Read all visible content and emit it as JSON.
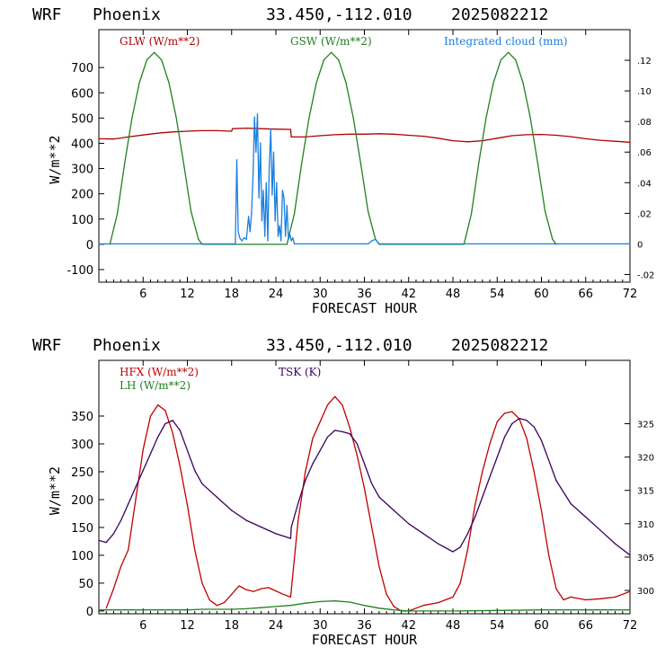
{
  "charts": [
    {
      "header": {
        "model": "WRF",
        "station": "Phoenix",
        "coords": "33.450,-112.010",
        "init": "2025082212"
      }
    },
    {
      "header": {
        "model": "WRF",
        "station": "Phoenix",
        "coords": "33.450,-112.010",
        "init": "2025082212"
      }
    }
  ],
  "chart_data": [
    {
      "type": "line",
      "xlabel": "FORECAST HOUR",
      "ylabel": "W/m**2",
      "xlim": [
        0,
        72
      ],
      "ylim": [
        -150,
        850
      ],
      "y2lim": [
        -0.025,
        0.14
      ],
      "xticks": [
        6,
        12,
        18,
        24,
        30,
        36,
        42,
        48,
        54,
        60,
        66,
        72
      ],
      "yticks": [
        -100,
        0,
        100,
        200,
        300,
        400,
        500,
        600,
        700
      ],
      "y2ticks": [
        -0.02,
        0,
        0.02,
        0.04,
        0.06,
        0.08,
        0.1,
        0.12
      ],
      "y2ticklabels": [
        "-.02",
        "0",
        ".02",
        ".04",
        ".06",
        ".08",
        ".10",
        ".12"
      ],
      "series": [
        {
          "name": "GLW (W/m**2)",
          "color": "#b00000",
          "axis": "left",
          "x": [
            0,
            2,
            4,
            6,
            8,
            10,
            12,
            14,
            16,
            18,
            18.1,
            20,
            22,
            24,
            26,
            26.1,
            28,
            30,
            32,
            34,
            36,
            38,
            40,
            42,
            44,
            46,
            48,
            50,
            52,
            54,
            56,
            58,
            60,
            62,
            64,
            66,
            68,
            70,
            72
          ],
          "values": [
            418,
            417,
            425,
            433,
            440,
            445,
            448,
            450,
            450,
            448,
            458,
            460,
            458,
            456,
            455,
            425,
            425,
            430,
            434,
            436,
            436,
            438,
            436,
            432,
            428,
            420,
            410,
            406,
            410,
            420,
            430,
            434,
            435,
            432,
            426,
            418,
            412,
            408,
            404
          ]
        },
        {
          "name": "GSW (W/m**2)",
          "color": "#208020",
          "axis": "left",
          "x": [
            1.5,
            2.5,
            3.5,
            4.5,
            5.5,
            6.5,
            7.5,
            8.5,
            9.5,
            10.5,
            11.5,
            12.5,
            13.5,
            14.0,
            25.5,
            26.5,
            27.5,
            28.5,
            29.5,
            30.5,
            31.5,
            32.5,
            33.5,
            34.5,
            35.5,
            36.5,
            37.5,
            38.0,
            49.5,
            50.5,
            51.5,
            52.5,
            53.5,
            54.5,
            55.5,
            56.5,
            57.5,
            58.5,
            59.5,
            60.5,
            61.5,
            62.0
          ],
          "values": [
            0,
            120,
            320,
            500,
            640,
            730,
            760,
            730,
            640,
            500,
            320,
            130,
            20,
            0,
            0,
            120,
            320,
            500,
            640,
            730,
            760,
            730,
            640,
            500,
            320,
            130,
            20,
            0,
            0,
            120,
            320,
            500,
            640,
            730,
            760,
            730,
            640,
            500,
            320,
            130,
            20,
            0
          ]
        },
        {
          "name": "Integrated cloud (mm)",
          "color": "#1a7fe0",
          "axis": "right",
          "x": [
            0,
            18.5,
            18.7,
            18.9,
            19.1,
            19.4,
            19.7,
            20.0,
            20.3,
            20.5,
            20.7,
            20.9,
            21.1,
            21.3,
            21.5,
            21.7,
            21.9,
            22.1,
            22.3,
            22.5,
            22.7,
            22.9,
            23.1,
            23.3,
            23.5,
            23.7,
            23.9,
            24.1,
            24.3,
            24.5,
            24.7,
            24.9,
            25.1,
            25.3,
            25.5,
            25.7,
            25.9,
            26.1,
            26.3,
            26.5,
            36.5,
            37.0,
            37.5,
            38.0,
            72
          ],
          "values": [
            0,
            0,
            0.055,
            0.008,
            0.004,
            0.002,
            0.004,
            0.003,
            0.018,
            0.008,
            0.02,
            0.045,
            0.083,
            0.06,
            0.085,
            0.03,
            0.066,
            0.015,
            0.035,
            0.005,
            0.04,
            0.002,
            0.05,
            0.075,
            0.032,
            0.06,
            0.015,
            0.04,
            0.005,
            0.012,
            0.002,
            0.035,
            0.03,
            0.005,
            0.025,
            0.003,
            0.006,
            0.002,
            0.004,
            0,
            0,
            0.002,
            0.003,
            0,
            0
          ]
        }
      ]
    },
    {
      "type": "line",
      "xlabel": "FORECAST HOUR",
      "ylabel": "W/m**2",
      "xlim": [
        0,
        72
      ],
      "ylim": [
        -5,
        450
      ],
      "y2lim": [
        296.5,
        334.5
      ],
      "xticks": [
        6,
        12,
        18,
        24,
        30,
        36,
        42,
        48,
        54,
        60,
        66,
        72
      ],
      "yticks": [
        0,
        50,
        100,
        150,
        200,
        250,
        300,
        350
      ],
      "y2ticks": [
        300,
        305,
        310,
        315,
        320,
        325
      ],
      "series": [
        {
          "name": "HFX (W/m**2)",
          "color": "#c00000",
          "axis": "left",
          "x": [
            1,
            2,
            3,
            4,
            5,
            6,
            7,
            8,
            9,
            10,
            11,
            12,
            13,
            14,
            15,
            16,
            17,
            18,
            19,
            20,
            21,
            22,
            23,
            24,
            25,
            26,
            27,
            28,
            29,
            30,
            31,
            32,
            33,
            34,
            35,
            36,
            37,
            38,
            39,
            40,
            41,
            42,
            44,
            46,
            48,
            49,
            50,
            51,
            52,
            53,
            54,
            55,
            56,
            57,
            58,
            59,
            60,
            61,
            62,
            63,
            64,
            66,
            68,
            70,
            72
          ],
          "values": [
            5,
            40,
            80,
            110,
            200,
            290,
            350,
            370,
            360,
            320,
            260,
            190,
            110,
            50,
            20,
            10,
            15,
            30,
            45,
            38,
            35,
            40,
            42,
            36,
            30,
            25,
            160,
            250,
            310,
            340,
            370,
            385,
            370,
            330,
            280,
            220,
            150,
            80,
            30,
            8,
            0,
            0,
            10,
            15,
            25,
            50,
            110,
            190,
            250,
            300,
            340,
            355,
            358,
            345,
            310,
            250,
            180,
            100,
            40,
            20,
            25,
            20,
            22,
            25,
            35
          ]
        },
        {
          "name": "LH (W/m**2)",
          "color": "#208020",
          "axis": "left",
          "x": [
            0,
            6,
            12,
            14,
            18,
            20,
            22,
            24,
            26,
            28,
            30,
            32,
            34,
            36,
            38,
            40,
            42,
            48,
            54,
            60,
            66,
            72
          ],
          "values": [
            2,
            2,
            2,
            3,
            3,
            4,
            6,
            8,
            10,
            14,
            17,
            18,
            16,
            10,
            5,
            2,
            0,
            0,
            1,
            2,
            2,
            2
          ]
        },
        {
          "name": "TSK (K)",
          "color": "#3a0060",
          "axis": "right",
          "x": [
            0,
            1,
            2,
            3,
            4,
            5,
            6,
            7,
            8,
            9,
            10,
            11,
            12,
            13,
            14,
            16,
            18,
            20,
            22,
            24,
            26,
            26.1,
            27,
            28,
            29,
            30,
            31,
            32,
            33,
            34,
            35,
            36,
            37,
            38,
            40,
            42,
            44,
            46,
            48,
            49,
            50,
            51,
            52,
            53,
            54,
            55,
            56,
            57,
            58,
            59,
            60,
            61,
            62,
            64,
            66,
            68,
            70,
            72
          ],
          "values": [
            307.5,
            307.2,
            308.5,
            310.5,
            313,
            315.5,
            318,
            320.5,
            323,
            325,
            325.5,
            324,
            321,
            318,
            316,
            314,
            312,
            310.5,
            309.5,
            308.5,
            307.8,
            309.5,
            313,
            316.5,
            319,
            321,
            323,
            324,
            323.8,
            323.5,
            322,
            319,
            316,
            314,
            312,
            310,
            308.5,
            307,
            305.8,
            306.5,
            308.5,
            311,
            314,
            317,
            320,
            323,
            325,
            325.8,
            325.5,
            324.5,
            322.5,
            319.5,
            316.5,
            313,
            311,
            309,
            307,
            305.3
          ]
        }
      ]
    }
  ]
}
